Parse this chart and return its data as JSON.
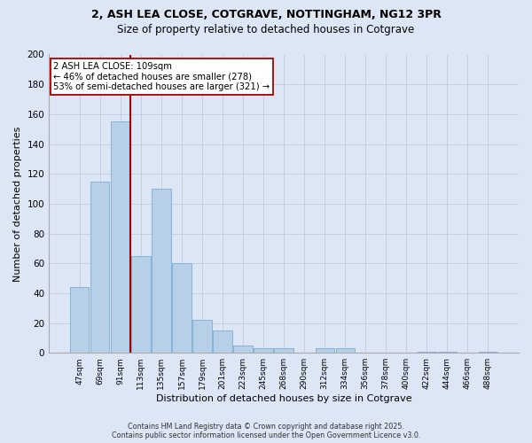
{
  "title_line1": "2, ASH LEA CLOSE, COTGRAVE, NOTTINGHAM, NG12 3PR",
  "title_line2": "Size of property relative to detached houses in Cotgrave",
  "categories": [
    "47sqm",
    "69sqm",
    "91sqm",
    "113sqm",
    "135sqm",
    "157sqm",
    "179sqm",
    "201sqm",
    "223sqm",
    "245sqm",
    "268sqm",
    "290sqm",
    "312sqm",
    "334sqm",
    "356sqm",
    "378sqm",
    "400sqm",
    "422sqm",
    "444sqm",
    "466sqm",
    "488sqm"
  ],
  "values": [
    44,
    115,
    155,
    65,
    110,
    60,
    22,
    15,
    5,
    3,
    3,
    0,
    3,
    3,
    0,
    0,
    0,
    1,
    1,
    0,
    1
  ],
  "bar_color": "#b8cfe8",
  "bar_edge_color": "#7aadd4",
  "background_color": "#dce6f5",
  "vline_color": "#aa0000",
  "annotation_text": "2 ASH LEA CLOSE: 109sqm\n← 46% of detached houses are smaller (278)\n53% of semi-detached houses are larger (321) →",
  "annotation_box_facecolor": "#ffffff",
  "annotation_box_edge": "#aa0000",
  "xlabel": "Distribution of detached houses by size in Cotgrave",
  "ylabel": "Number of detached properties",
  "ylim": [
    0,
    200
  ],
  "yticks": [
    0,
    20,
    40,
    60,
    80,
    100,
    120,
    140,
    160,
    180,
    200
  ],
  "footer_line1": "Contains HM Land Registry data © Crown copyright and database right 2025.",
  "footer_line2": "Contains public sector information licensed under the Open Government Licence v3.0.",
  "grid_color": "#c5cedf",
  "title_fontsize": 9,
  "subtitle_fontsize": 8.5
}
